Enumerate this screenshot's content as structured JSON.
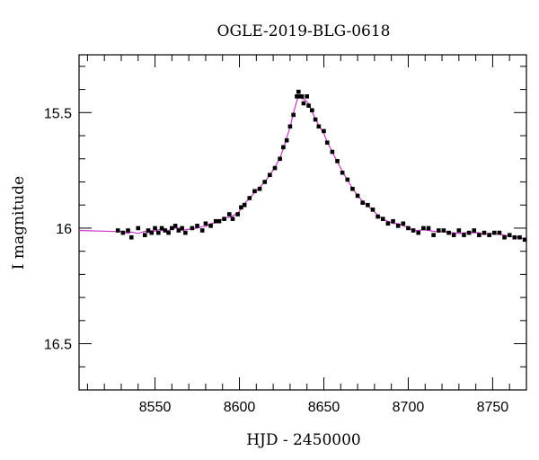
{
  "chart_data": {
    "type": "scatter",
    "title": "OGLE-2019-BLG-0618",
    "xlabel": "HJD - 2450000",
    "ylabel": "I magnitude",
    "xlim": [
      8505,
      8770
    ],
    "ylim": [
      16.7,
      15.25
    ],
    "y_inverted": true,
    "x_ticks": [
      8550,
      8600,
      8650,
      8700,
      8750
    ],
    "x_tick_labels": [
      "8550",
      "8600",
      "8650",
      "8700",
      "8750"
    ],
    "y_ticks": [
      15.5,
      16,
      16.5
    ],
    "y_tick_labels": [
      "15.5",
      "16",
      "16.5"
    ],
    "model_color": "#cc33cc",
    "point_color": "#000000",
    "series": [
      {
        "type": "scatter",
        "x": [
          8528,
          8531,
          8534,
          8536,
          8540,
          8544,
          8546,
          8548,
          8550,
          8552,
          8554,
          8556,
          8558,
          8560,
          8562,
          8564,
          8566,
          8568,
          8572,
          8575,
          8578,
          8580,
          8583,
          8586,
          8588,
          8591,
          8594,
          8596,
          8599,
          8601,
          8603,
          8606,
          8609,
          8612,
          8615,
          8618,
          8621,
          8624,
          8626,
          8628,
          8630,
          8632,
          8634,
          8635,
          8636,
          8637,
          8638,
          8640,
          8641,
          8643,
          8645,
          8647,
          8650,
          8652,
          8655,
          8658,
          8661,
          8664,
          8667,
          8670,
          8673,
          8676,
          8679,
          8682,
          8685,
          8688,
          8691,
          8694,
          8697,
          8700,
          8703,
          8706,
          8709,
          8712,
          8715,
          8718,
          8721,
          8724,
          8727,
          8730,
          8733,
          8736,
          8739,
          8742,
          8745,
          8748,
          8751,
          8754,
          8757,
          8760,
          8763,
          8766,
          8769
        ],
        "y": [
          16.01,
          16.02,
          16.01,
          16.04,
          16.0,
          16.03,
          16.01,
          16.02,
          16.0,
          16.02,
          16.0,
          16.01,
          16.02,
          16.0,
          15.99,
          16.01,
          16.0,
          16.02,
          16.0,
          15.99,
          16.01,
          15.98,
          15.99,
          15.97,
          15.97,
          15.96,
          15.94,
          15.96,
          15.94,
          15.91,
          15.9,
          15.87,
          15.84,
          15.83,
          15.8,
          15.77,
          15.74,
          15.7,
          15.65,
          15.62,
          15.56,
          15.51,
          15.43,
          15.41,
          15.43,
          15.43,
          15.46,
          15.43,
          15.47,
          15.49,
          15.53,
          15.56,
          15.58,
          15.63,
          15.67,
          15.71,
          15.76,
          15.79,
          15.83,
          15.86,
          15.89,
          15.9,
          15.92,
          15.95,
          15.96,
          15.98,
          15.97,
          15.99,
          15.98,
          16.0,
          16.01,
          16.02,
          16.0,
          16.0,
          16.03,
          16.01,
          16.01,
          16.02,
          16.03,
          16.01,
          16.03,
          16.02,
          16.01,
          16.03,
          16.02,
          16.03,
          16.02,
          16.02,
          16.04,
          16.03,
          16.04,
          16.04,
          16.05
        ]
      }
    ]
  }
}
